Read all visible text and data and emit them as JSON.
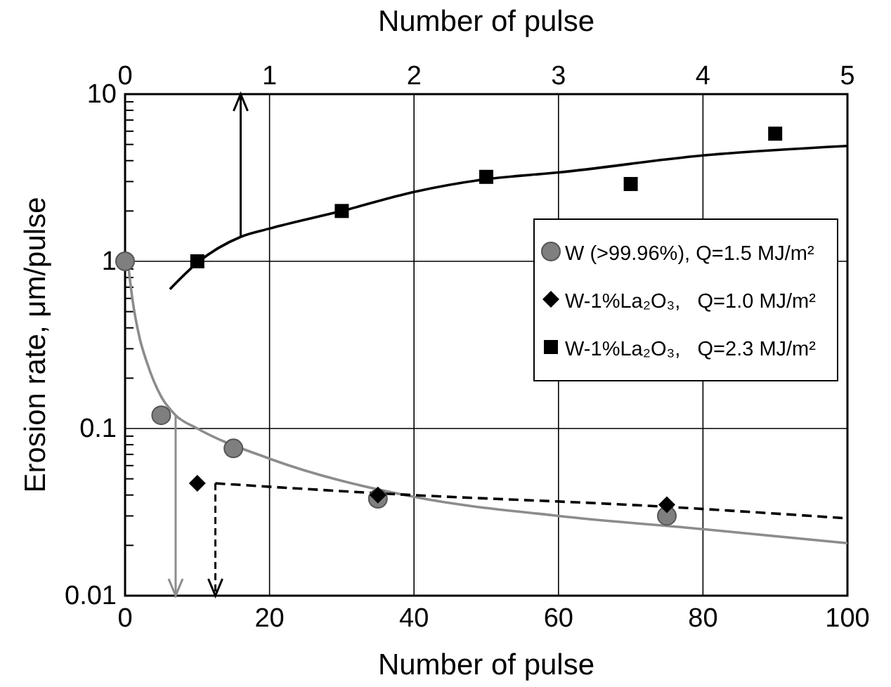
{
  "chart_data": {
    "type": "scatter",
    "xlabel": "Number of pulse",
    "x2label": "Number of pulse",
    "ylabel": "Erosion rate, μm/pulse",
    "xlim": [
      0,
      100
    ],
    "xticks": [
      0,
      20,
      40,
      60,
      80,
      100
    ],
    "x2lim": [
      0,
      5
    ],
    "x2ticks": [
      0,
      1,
      2,
      3,
      4,
      5
    ],
    "ylim": [
      0.01,
      10
    ],
    "log": true,
    "yticks": [
      0.01,
      {
        "value": 0.02,
        "label": null
      },
      {
        "value": 0.03,
        "label": null
      },
      {
        "value": 0.04,
        "label": null
      },
      {
        "value": 0.05,
        "label": null
      },
      {
        "value": 0.06,
        "label": null
      },
      {
        "value": 0.07,
        "label": null
      },
      {
        "value": 0.08,
        "label": null
      },
      {
        "value": 0.09,
        "label": null
      },
      0.1,
      {
        "value": 0.2,
        "label": null
      },
      {
        "value": 0.3,
        "label": null
      },
      {
        "value": 0.4,
        "label": null
      },
      {
        "value": 0.5,
        "label": null
      },
      {
        "value": 0.6,
        "label": null
      },
      {
        "value": 0.7,
        "label": null
      },
      {
        "value": 0.8,
        "label": null
      },
      {
        "value": 0.9,
        "label": null
      },
      1,
      {
        "value": 2,
        "label": null
      },
      {
        "value": 3,
        "label": null
      },
      {
        "value": 4,
        "label": null
      },
      {
        "value": 5,
        "label": null
      },
      {
        "value": 6,
        "label": null
      },
      {
        "value": 7,
        "label": null
      },
      {
        "value": 8,
        "label": null
      },
      {
        "value": 9,
        "label": null
      },
      10
    ],
    "grid": true,
    "legend": "top right",
    "series": [
      {
        "name": "W (>99.96%), Q=1.5 MJ/m²",
        "marker": "circle",
        "color": "#7f7f7f",
        "x": [
          0,
          5,
          15,
          35,
          75
        ],
        "values": [
          1,
          0.12,
          0.076,
          0.038,
          0.03
        ]
      },
      {
        "name": "W-1%La₂O₃,   Q=1.0 MJ/m²",
        "marker": "diamond",
        "color": "#000000",
        "x": [
          10,
          35,
          75
        ],
        "values": [
          0.047,
          0.04,
          0.035
        ]
      },
      {
        "name": "W-1%La₂O₃,   Q=2.3 MJ/m²",
        "marker": "square",
        "color": "#000000",
        "axis": "x2",
        "x": [
          0.5,
          1.5,
          2.5,
          3.5,
          4.5
        ],
        "values": [
          1,
          2,
          3.2,
          2.9,
          5.8
        ]
      },
      {
        "type": "line",
        "line_style": "solid",
        "color": "#8c8c8c",
        "x": [
          0.5,
          1,
          2,
          3,
          5,
          7,
          10,
          20,
          40,
          60,
          80,
          100
        ],
        "values": [
          0.9,
          0.6,
          0.35,
          0.25,
          0.155,
          0.12,
          0.1,
          0.066,
          0.039,
          0.03,
          0.025,
          0.0206
        ]
      },
      {
        "type": "line",
        "line_style": "dashed",
        "color": "#000000",
        "x": [
          12.5,
          35,
          75,
          100
        ],
        "values": [
          0.047,
          0.041,
          0.034,
          0.029
        ]
      },
      {
        "type": "line",
        "line_style": "solid",
        "color": "#000000",
        "axis": "x2",
        "x": [
          0.31,
          0.5,
          0.8,
          1,
          1.5,
          2,
          2.5,
          3,
          4,
          5
        ],
        "values": [
          0.68,
          0.98,
          1.4,
          1.57,
          2,
          2.6,
          3.1,
          3.4,
          4.3,
          4.9
        ]
      }
    ]
  }
}
